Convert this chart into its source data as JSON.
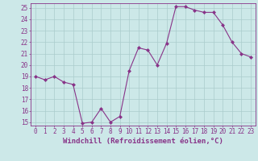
{
  "x": [
    0,
    1,
    2,
    3,
    4,
    5,
    6,
    7,
    8,
    9,
    10,
    11,
    12,
    13,
    14,
    15,
    16,
    17,
    18,
    19,
    20,
    21,
    22,
    23
  ],
  "y": [
    19.0,
    18.7,
    19.0,
    18.5,
    18.3,
    14.9,
    15.0,
    16.2,
    15.0,
    15.5,
    19.5,
    21.5,
    21.3,
    20.0,
    21.9,
    25.1,
    25.1,
    24.8,
    24.6,
    24.6,
    23.5,
    22.0,
    21.0,
    20.7
  ],
  "line_color": "#883388",
  "marker": "D",
  "marker_size": 2.0,
  "bg_color": "#cce8e8",
  "grid_color": "#aacccc",
  "xlabel": "Windchill (Refroidissement éolien,°C)",
  "ylim": [
    14.7,
    25.4
  ],
  "xlim": [
    -0.5,
    23.5
  ],
  "yticks": [
    15,
    16,
    17,
    18,
    19,
    20,
    21,
    22,
    23,
    24,
    25
  ],
  "xticks": [
    0,
    1,
    2,
    3,
    4,
    5,
    6,
    7,
    8,
    9,
    10,
    11,
    12,
    13,
    14,
    15,
    16,
    17,
    18,
    19,
    20,
    21,
    22,
    23
  ],
  "tick_color": "#883388",
  "label_color": "#883388",
  "label_fontsize": 6.5,
  "tick_fontsize": 5.5,
  "linewidth": 0.8
}
